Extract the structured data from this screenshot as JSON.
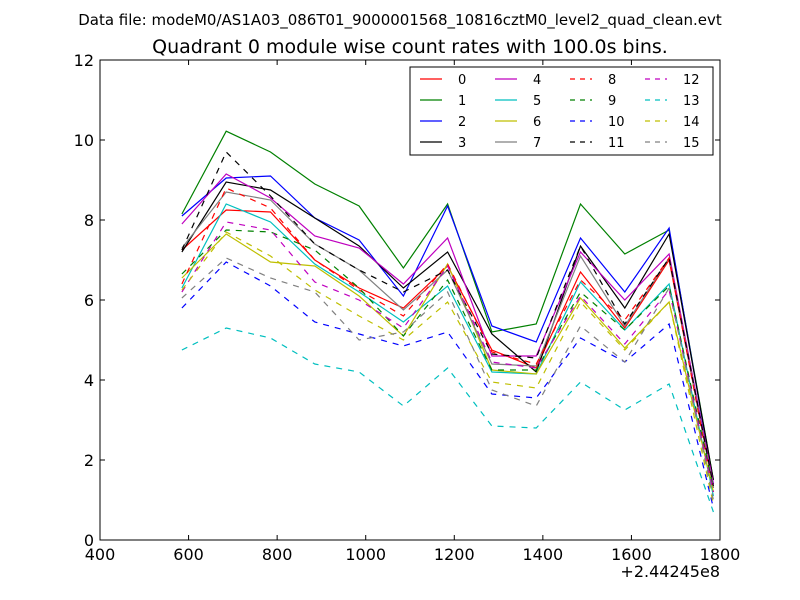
{
  "chart_data": {
    "type": "line",
    "suptitle": "Data file: modeM0/AS1A03_086T01_9000001568_10816cztM0_level2_quad_clean.evt",
    "title": "Quadrant 0 module wise count rates with 100.0s bins.",
    "xlabel": "",
    "ylabel": "",
    "x_offset_label": "+2.44245e8",
    "xlim": [
      400,
      1800
    ],
    "ylim": [
      0,
      12
    ],
    "x_ticks": [
      "400",
      "600",
      "800",
      "1000",
      "1200",
      "1400",
      "1600",
      "1800"
    ],
    "y_ticks": [
      "0",
      "2",
      "4",
      "6",
      "8",
      "10",
      "12"
    ],
    "legend_position": "top-right",
    "x": [
      585,
      685,
      785,
      885,
      985,
      1085,
      1185,
      1285,
      1385,
      1485,
      1585,
      1685,
      1785
    ],
    "series": [
      {
        "name": "0",
        "color": "#ff0000",
        "style": "solid",
        "values": [
          7.25,
          8.25,
          8.2,
          7.0,
          6.3,
          5.8,
          6.85,
          4.75,
          4.3,
          6.7,
          5.3,
          7.0,
          1.3
        ]
      },
      {
        "name": "1",
        "color": "#008000",
        "style": "solid",
        "values": [
          8.15,
          10.22,
          9.7,
          8.9,
          8.35,
          6.8,
          8.4,
          5.2,
          5.4,
          8.4,
          7.15,
          7.75,
          1.5
        ]
      },
      {
        "name": "2",
        "color": "#0000ff",
        "style": "solid",
        "values": [
          8.1,
          9.05,
          9.1,
          8.05,
          7.5,
          6.1,
          8.35,
          5.35,
          4.95,
          7.55,
          6.2,
          7.8,
          1.4
        ]
      },
      {
        "name": "3",
        "color": "#000000",
        "style": "solid",
        "values": [
          7.2,
          8.95,
          8.75,
          8.05,
          7.35,
          6.3,
          7.2,
          5.15,
          4.2,
          7.35,
          5.8,
          7.65,
          1.5
        ]
      },
      {
        "name": "4",
        "color": "#bf00bf",
        "style": "solid",
        "values": [
          7.9,
          9.15,
          8.55,
          7.6,
          7.3,
          6.4,
          7.55,
          4.6,
          4.6,
          7.2,
          6.0,
          7.15,
          1.4
        ]
      },
      {
        "name": "5",
        "color": "#00bfbf",
        "style": "solid",
        "values": [
          6.3,
          8.4,
          7.95,
          6.9,
          6.2,
          5.45,
          6.35,
          4.2,
          4.15,
          6.45,
          5.25,
          6.4,
          1.1
        ]
      },
      {
        "name": "6",
        "color": "#bfbf00",
        "style": "solid",
        "values": [
          6.55,
          7.65,
          6.95,
          6.85,
          6.1,
          5.1,
          6.9,
          4.25,
          4.15,
          6.05,
          4.8,
          5.95,
          1.2
        ]
      },
      {
        "name": "7",
        "color": "#808080",
        "style": "solid",
        "values": [
          7.3,
          8.7,
          8.5,
          7.4,
          6.75,
          5.75,
          6.75,
          4.4,
          4.35,
          7.1,
          5.35,
          7.05,
          1.3
        ]
      },
      {
        "name": "8",
        "color": "#ff0000",
        "style": "dashed",
        "values": [
          6.4,
          8.8,
          8.3,
          7.0,
          6.25,
          5.6,
          6.9,
          4.7,
          4.4,
          6.5,
          5.5,
          7.05,
          1.2
        ]
      },
      {
        "name": "9",
        "color": "#008000",
        "style": "dashed",
        "values": [
          6.65,
          7.75,
          7.7,
          7.25,
          6.3,
          5.1,
          6.5,
          4.25,
          4.25,
          6.2,
          5.25,
          6.35,
          1.3
        ]
      },
      {
        "name": "10",
        "color": "#0000ff",
        "style": "dashed",
        "values": [
          5.8,
          6.95,
          6.35,
          5.45,
          5.15,
          4.85,
          5.2,
          3.65,
          3.55,
          5.05,
          4.45,
          5.4,
          0.8
        ]
      },
      {
        "name": "11",
        "color": "#000000",
        "style": "dashed",
        "values": [
          7.25,
          9.7,
          8.6,
          7.4,
          6.75,
          6.2,
          6.75,
          4.65,
          4.55,
          7.35,
          5.4,
          7.05,
          1.35
        ]
      },
      {
        "name": "12",
        "color": "#bf00bf",
        "style": "dashed",
        "values": [
          6.2,
          7.95,
          7.75,
          6.45,
          6.0,
          5.3,
          6.85,
          4.45,
          4.3,
          6.1,
          4.9,
          6.25,
          1.2
        ]
      },
      {
        "name": "13",
        "color": "#00bfbf",
        "style": "dashed",
        "values": [
          4.75,
          5.3,
          5.05,
          4.4,
          4.2,
          3.35,
          4.3,
          2.85,
          2.8,
          3.95,
          3.25,
          3.9,
          0.7
        ]
      },
      {
        "name": "14",
        "color": "#bfbf00",
        "style": "dashed",
        "values": [
          6.25,
          7.7,
          7.1,
          6.25,
          5.6,
          5.0,
          5.95,
          3.95,
          3.8,
          5.95,
          4.75,
          5.95,
          0.9
        ]
      },
      {
        "name": "15",
        "color": "#808080",
        "style": "dashed",
        "values": [
          6.05,
          7.05,
          6.55,
          6.2,
          5.0,
          5.2,
          6.2,
          3.75,
          3.35,
          5.35,
          4.45,
          6.3,
          1.0
        ]
      }
    ]
  }
}
